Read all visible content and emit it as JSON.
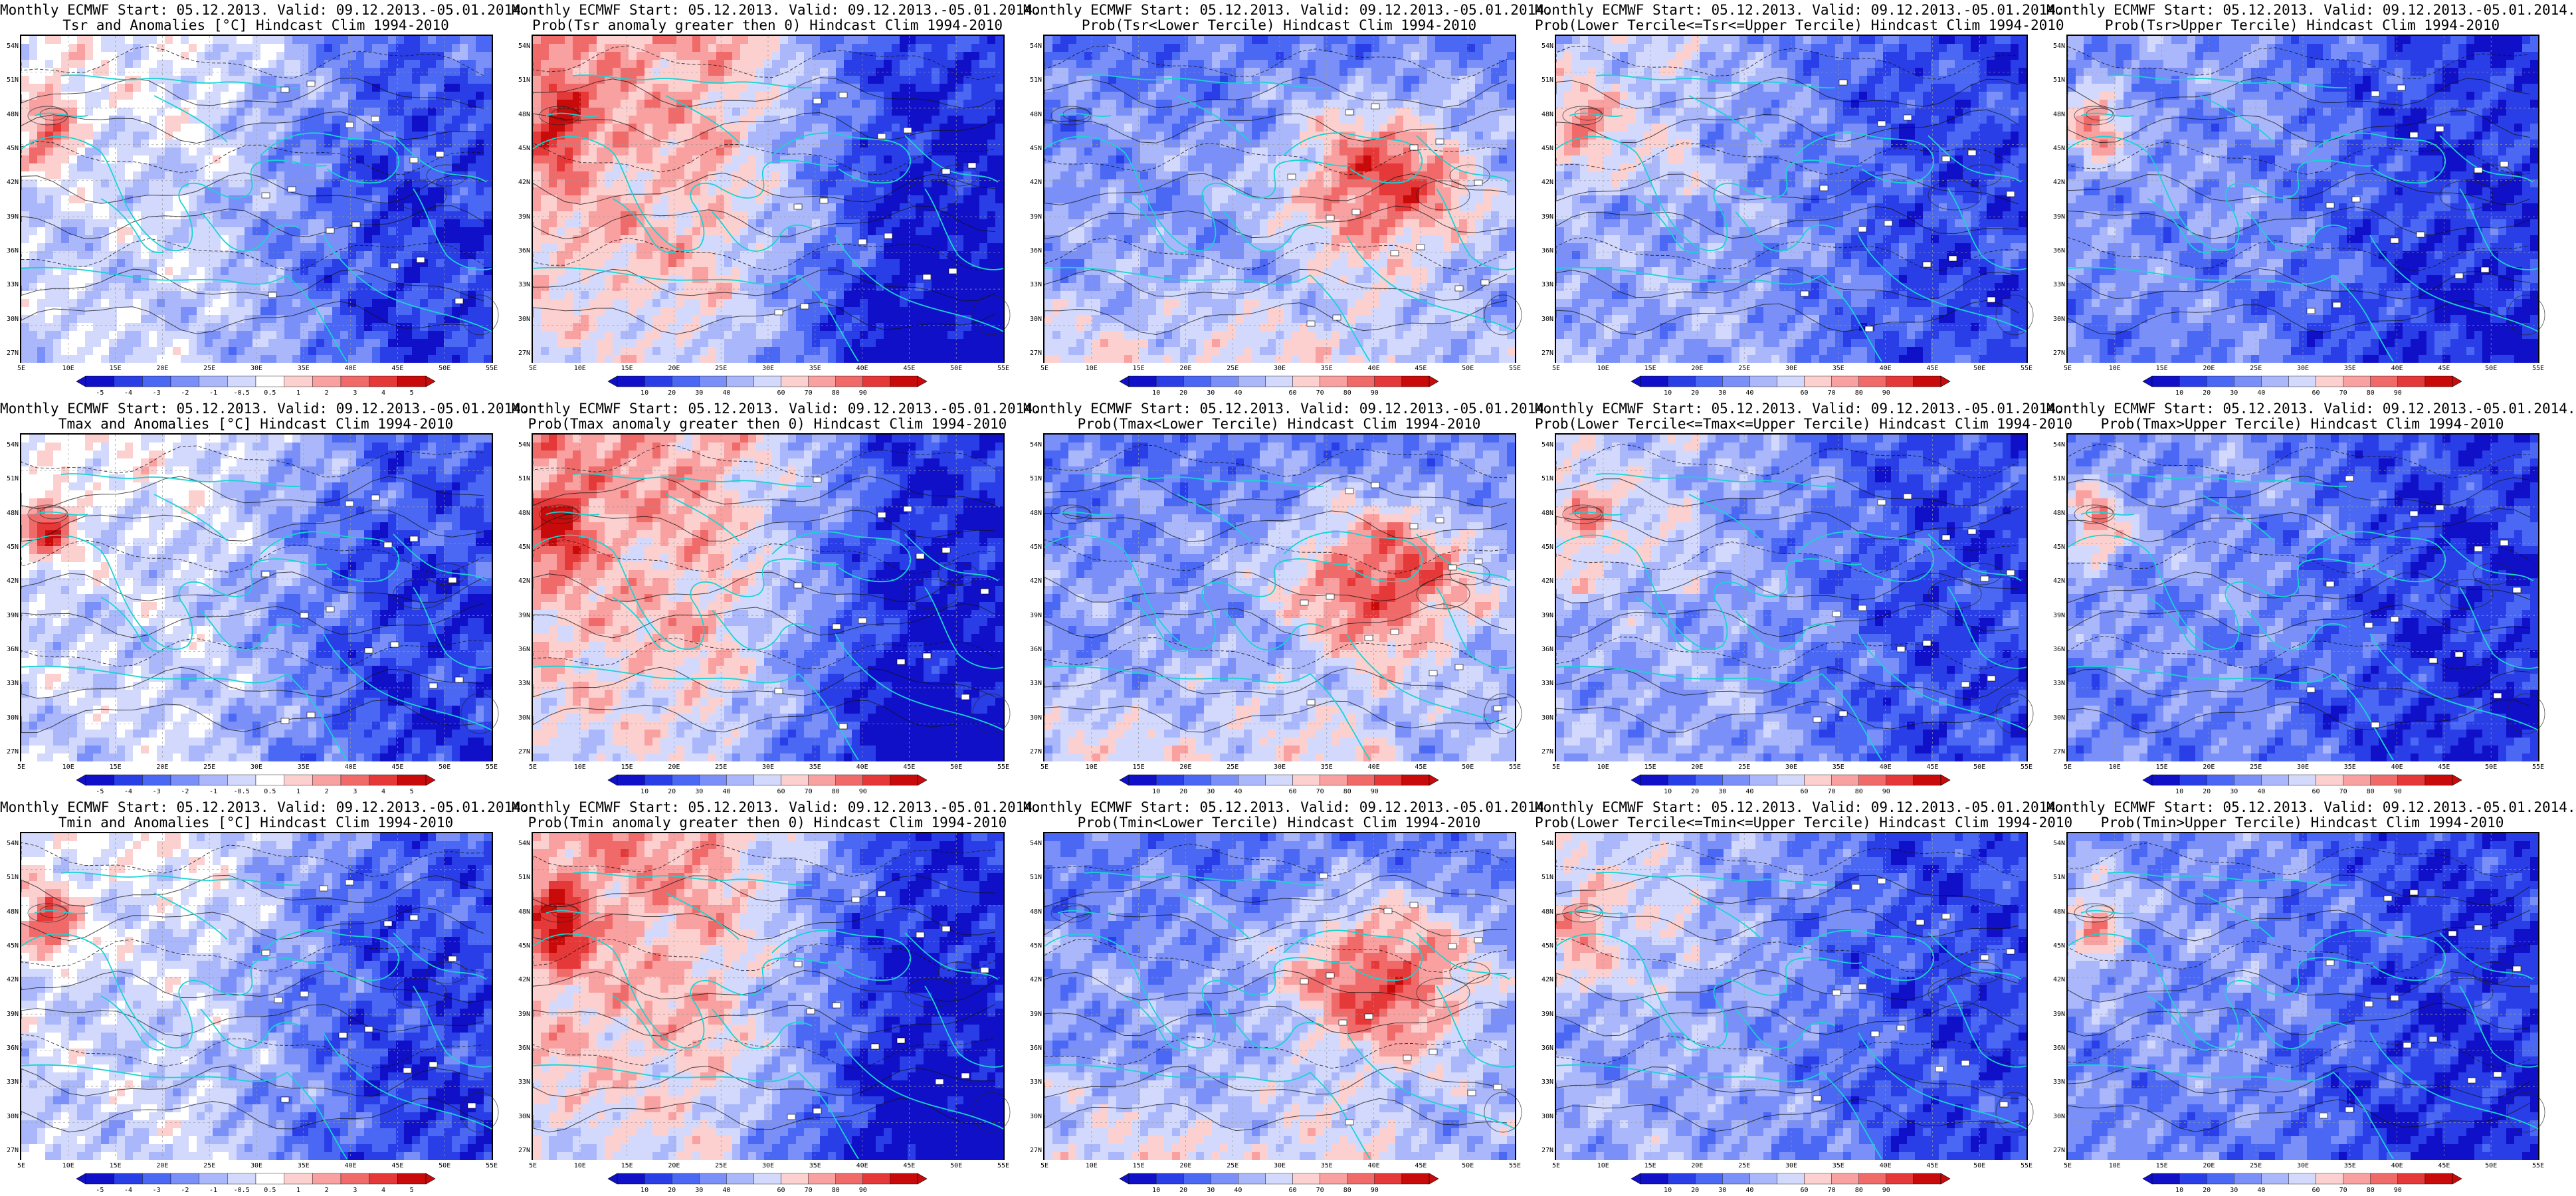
{
  "palettes": {
    "anom": [
      "#1010c8",
      "#2a3ee8",
      "#4a68f4",
      "#7a90f8",
      "#aab8fb",
      "#d2d9fd",
      "#ffffff",
      "#fdd0d0",
      "#f9a0a0",
      "#f06a6a",
      "#e53838",
      "#c80a0a"
    ],
    "prob": [
      "#1010c8",
      "#2a3ee8",
      "#4a68f4",
      "#7a90f8",
      "#aab8fb",
      "#d2d9fd",
      "#fdd0d0",
      "#f9a0a0",
      "#f06a6a",
      "#e53838",
      "#c80a0a"
    ]
  },
  "axes": {
    "lat_labels": [
      "54N",
      "51N",
      "48N",
      "45N",
      "42N",
      "39N",
      "36N",
      "33N",
      "30N",
      "27N"
    ],
    "lon_labels": [
      "5E",
      "10E",
      "15E",
      "20E",
      "25E",
      "30E",
      "35E",
      "40E",
      "45E",
      "50E",
      "55E"
    ]
  },
  "colorbars": {
    "anom": [
      "-5",
      "-4",
      "-3",
      "-2",
      "-1",
      "-0.5",
      "0.5",
      "1",
      "2",
      "3",
      "4",
      "5"
    ],
    "prob": [
      "10",
      "20",
      "30",
      "40",
      "60",
      "70",
      "80",
      "90"
    ]
  },
  "panels": [
    {
      "title1": "Monthly ECMWF Start: 05.12.2013. Valid: 09.12.2013.-05.01.2014.",
      "title2": "Tsr and Anomalies [°C] Hindcast Clim 1994-2010",
      "kind": "anom",
      "pattern": "anom"
    },
    {
      "title1": "Monthly ECMWF Start: 05.12.2013. Valid: 09.12.2013.-05.01.2014.",
      "title2": "Prob(Tsr anomaly greater then 0) Hindcast Clim 1994-2010",
      "kind": "prob",
      "pattern": "pos"
    },
    {
      "title1": "Monthly ECMWF Start: 05.12.2013. Valid: 09.12.2013.-05.01.2014.",
      "title2": "Prob(Tsr<Lower Tercile) Hindcast Clim 1994-2010",
      "kind": "prob",
      "pattern": "lower"
    },
    {
      "title1": "Monthly ECMWF Start: 05.12.2013. Valid: 09.12.2013.-05.01.2014.",
      "title2": "Prob(Lower Tercile<=Tsr<=Upper Tercile) Hindcast Clim 1994-2010",
      "kind": "prob",
      "pattern": "middle"
    },
    {
      "title1": "Monthly ECMWF Start: 05.12.2013. Valid: 09.12.2013.-05.01.2014.",
      "title2": "Prob(Tsr>Upper Tercile) Hindcast Clim 1994-2010",
      "kind": "prob",
      "pattern": "upper"
    },
    {
      "title1": "Monthly ECMWF Start: 05.12.2013. Valid: 09.12.2013.-05.01.2014.",
      "title2": "Tmax and Anomalies [°C] Hindcast Clim 1994-2010",
      "kind": "anom",
      "pattern": "anom"
    },
    {
      "title1": "Monthly ECMWF Start: 05.12.2013. Valid: 09.12.2013.-05.01.2014.",
      "title2": "Prob(Tmax anomaly greater then 0) Hindcast Clim 1994-2010",
      "kind": "prob",
      "pattern": "pos"
    },
    {
      "title1": "Monthly ECMWF Start: 05.12.2013. Valid: 09.12.2013.-05.01.2014.",
      "title2": "Prob(Tmax<Lower Tercile) Hindcast Clim 1994-2010",
      "kind": "prob",
      "pattern": "lower"
    },
    {
      "title1": "Monthly ECMWF Start: 05.12.2013. Valid: 09.12.2013.-05.01.2014.",
      "title2": "Prob(Lower Tercile<=Tmax<=Upper Tercile) Hindcast Clim 1994-2010",
      "kind": "prob",
      "pattern": "middle"
    },
    {
      "title1": "Monthly ECMWF Start: 05.12.2013. Valid: 09.12.2013.-05.01.2014.",
      "title2": "Prob(Tmax>Upper Tercile) Hindcast Clim 1994-2010",
      "kind": "prob",
      "pattern": "upper"
    },
    {
      "title1": "Monthly ECMWF Start: 05.12.2013. Valid: 09.12.2013.-05.01.2014.",
      "title2": "Tmin and Anomalies [°C] Hindcast Clim 1994-2010",
      "kind": "anom",
      "pattern": "anom"
    },
    {
      "title1": "Monthly ECMWF Start: 05.12.2013. Valid: 09.12.2013.-05.01.2014.",
      "title2": "Prob(Tmin anomaly greater then 0) Hindcast Clim 1994-2010",
      "kind": "prob",
      "pattern": "pos"
    },
    {
      "title1": "Monthly ECMWF Start: 05.12.2013. Valid: 09.12.2013.-05.01.2014.",
      "title2": "Prob(Tmin<Lower Tercile) Hindcast Clim 1994-2010",
      "kind": "prob",
      "pattern": "lower"
    },
    {
      "title1": "Monthly ECMWF Start: 05.12.2013. Valid: 09.12.2013.-05.01.2014.",
      "title2": "Prob(Lower Tercile<=Tmin<=Upper Tercile) Hindcast Clim 1994-2010",
      "kind": "prob",
      "pattern": "middle"
    },
    {
      "title1": "Monthly ECMWF Start: 05.12.2013. Valid: 09.12.2013.-05.01.2014.",
      "title2": "Prob(Tmin>Upper Tercile) Hindcast Clim 1994-2010",
      "kind": "prob",
      "pattern": "upper"
    }
  ]
}
